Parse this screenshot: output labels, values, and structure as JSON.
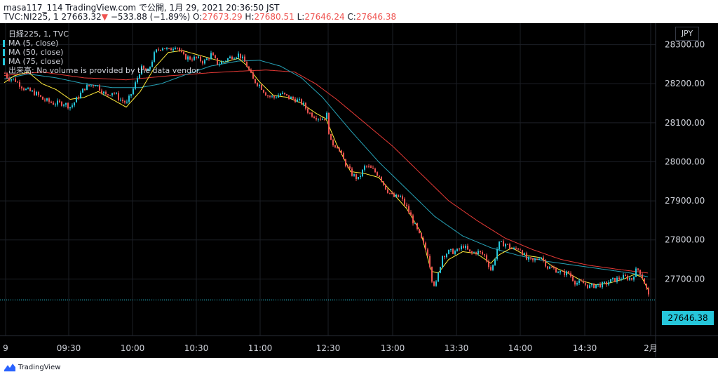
{
  "header": {
    "line1": "masa117_114 TradingView.com で公開, 1月 29, 2021 20:36:50 JST",
    "symbol": "TVC:NI225, 1",
    "last": "27663.32",
    "change_arrow": "▼",
    "change": "−533.88 (−1.89%)",
    "o_label": "O:",
    "o_val": "27673.29",
    "h_label": "H:",
    "h_val": "27680.51",
    "l_label": "L:",
    "l_val": "27646.24",
    "c_label": "C:",
    "c_val": "27646.38"
  },
  "legend": {
    "title": "日経225, 1, TVC",
    "ma5": "MA (5, close)",
    "ma50": "MA (50, close)",
    "ma75": "MA (75, close)",
    "volume_note": "出来高: No volume is provided by the data vendor."
  },
  "currency": "JPY",
  "last_price_label": "27646.38",
  "brand": {
    "name": "TradingView"
  },
  "colors": {
    "background": "#000000",
    "up_candle": "#26c6da",
    "down_candle": "#ef5350",
    "ma5": "#ffeb3b",
    "ma50": "#26a1b5",
    "ma75": "#e53935",
    "grid": "#1c1f26",
    "axis_text": "#d1d4dc"
  },
  "chart_data": {
    "type": "candlestick",
    "y_ticks": [
      27700,
      27800,
      27900,
      28000,
      28100,
      28200,
      28300
    ],
    "y_tick_labels": [
      "27700.00",
      "27800.00",
      "27900.00",
      "28000.00",
      "28100.00",
      "28200.00",
      "28300.00"
    ],
    "ylim": [
      27555,
      28355
    ],
    "x_tick_labels": [
      "9",
      "09:30",
      "10:00",
      "10:30",
      "11:00",
      "12:30",
      "13:00",
      "13:30",
      "14:00",
      "14:30",
      "2月"
    ],
    "last_price": 27646.38,
    "anchors": {
      "close": [
        [
          0,
          28245
        ],
        [
          10,
          28215
        ],
        [
          20,
          28210
        ],
        [
          35,
          28185
        ],
        [
          50,
          28175
        ],
        [
          60,
          28160
        ],
        [
          75,
          28150
        ],
        [
          90,
          28150
        ],
        [
          100,
          28140
        ],
        [
          110,
          28165
        ],
        [
          120,
          28190
        ],
        [
          135,
          28200
        ],
        [
          150,
          28170
        ],
        [
          160,
          28180
        ],
        [
          170,
          28160
        ],
        [
          180,
          28150
        ],
        [
          190,
          28190
        ],
        [
          200,
          28240
        ],
        [
          210,
          28230
        ],
        [
          220,
          28280
        ],
        [
          230,
          28295
        ],
        [
          240,
          28285
        ],
        [
          250,
          28300
        ],
        [
          260,
          28270
        ],
        [
          270,
          28265
        ],
        [
          280,
          28265
        ],
        [
          290,
          28255
        ],
        [
          300,
          28275
        ],
        [
          310,
          28250
        ],
        [
          320,
          28260
        ],
        [
          330,
          28270
        ],
        [
          340,
          28275
        ],
        [
          350,
          28250
        ],
        [
          360,
          28210
        ],
        [
          370,
          28195
        ],
        [
          380,
          28170
        ],
        [
          390,
          28165
        ],
        [
          400,
          28175
        ],
        [
          410,
          28165
        ],
        [
          420,
          28160
        ],
        [
          430,
          28150
        ],
        [
          440,
          28125
        ],
        [
          450,
          28115
        ],
        [
          460,
          28110
        ],
        [
          465,
          28120
        ],
        [
          470,
          28050
        ],
        [
          480,
          28040
        ],
        [
          490,
          28000
        ],
        [
          500,
          27970
        ],
        [
          510,
          27955
        ],
        [
          520,
          27990
        ],
        [
          530,
          27980
        ],
        [
          540,
          27965
        ],
        [
          550,
          27930
        ],
        [
          560,
          27910
        ],
        [
          570,
          27910
        ],
        [
          580,
          27880
        ],
        [
          590,
          27840
        ],
        [
          600,
          27800
        ],
        [
          610,
          27760
        ],
        [
          615,
          27700
        ],
        [
          620,
          27680
        ],
        [
          625,
          27720
        ],
        [
          630,
          27760
        ],
        [
          640,
          27770
        ],
        [
          650,
          27770
        ],
        [
          660,
          27785
        ],
        [
          670,
          27765
        ],
        [
          680,
          27770
        ],
        [
          690,
          27760
        ],
        [
          700,
          27720
        ],
        [
          710,
          27790
        ],
        [
          720,
          27790
        ],
        [
          730,
          27775
        ],
        [
          740,
          27780
        ],
        [
          750,
          27750
        ],
        [
          760,
          27745
        ],
        [
          770,
          27760
        ],
        [
          780,
          27730
        ],
        [
          790,
          27725
        ],
        [
          800,
          27715
        ],
        [
          810,
          27715
        ],
        [
          820,
          27690
        ],
        [
          830,
          27690
        ],
        [
          840,
          27680
        ],
        [
          850,
          27685
        ],
        [
          860,
          27685
        ],
        [
          870,
          27695
        ],
        [
          880,
          27700
        ],
        [
          890,
          27705
        ],
        [
          900,
          27700
        ],
        [
          905,
          27720
        ],
        [
          910,
          27725
        ],
        [
          915,
          27705
        ],
        [
          920,
          27680
        ],
        [
          925,
          27650
        ]
      ],
      "ma5": [
        [
          0,
          28195
        ],
        [
          20,
          28220
        ],
        [
          40,
          28230
        ],
        [
          60,
          28200
        ],
        [
          80,
          28185
        ],
        [
          100,
          28160
        ],
        [
          120,
          28165
        ],
        [
          140,
          28180
        ],
        [
          160,
          28160
        ],
        [
          180,
          28140
        ],
        [
          200,
          28180
        ],
        [
          220,
          28240
        ],
        [
          240,
          28280
        ],
        [
          260,
          28285
        ],
        [
          280,
          28275
        ],
        [
          300,
          28265
        ],
        [
          320,
          28255
        ],
        [
          340,
          28265
        ],
        [
          350,
          28250
        ],
        [
          370,
          28205
        ],
        [
          390,
          28170
        ],
        [
          410,
          28165
        ],
        [
          430,
          28150
        ],
        [
          450,
          28125
        ],
        [
          465,
          28110
        ],
        [
          480,
          28045
        ],
        [
          500,
          27975
        ],
        [
          520,
          27970
        ],
        [
          540,
          27960
        ],
        [
          560,
          27920
        ],
        [
          580,
          27880
        ],
        [
          600,
          27820
        ],
        [
          615,
          27720
        ],
        [
          625,
          27715
        ],
        [
          640,
          27750
        ],
        [
          660,
          27770
        ],
        [
          680,
          27765
        ],
        [
          700,
          27740
        ],
        [
          710,
          27760
        ],
        [
          730,
          27780
        ],
        [
          750,
          27760
        ],
        [
          770,
          27755
        ],
        [
          790,
          27730
        ],
        [
          810,
          27715
        ],
        [
          830,
          27695
        ],
        [
          850,
          27685
        ],
        [
          870,
          27690
        ],
        [
          890,
          27700
        ],
        [
          905,
          27712
        ],
        [
          915,
          27705
        ],
        [
          925,
          27670
        ]
      ],
      "ma50": [
        [
          0,
          28210
        ],
        [
          40,
          28225
        ],
        [
          80,
          28215
        ],
        [
          120,
          28200
        ],
        [
          160,
          28190
        ],
        [
          200,
          28190
        ],
        [
          230,
          28200
        ],
        [
          260,
          28220
        ],
        [
          300,
          28245
        ],
        [
          340,
          28258
        ],
        [
          370,
          28260
        ],
        [
          400,
          28245
        ],
        [
          430,
          28215
        ],
        [
          460,
          28165
        ],
        [
          500,
          28080
        ],
        [
          540,
          28000
        ],
        [
          580,
          27930
        ],
        [
          620,
          27860
        ],
        [
          660,
          27810
        ],
        [
          700,
          27780
        ],
        [
          740,
          27760
        ],
        [
          780,
          27745
        ],
        [
          820,
          27735
        ],
        [
          860,
          27725
        ],
        [
          900,
          27715
        ],
        [
          925,
          27705
        ]
      ],
      "ma75": [
        [
          0,
          28220
        ],
        [
          60,
          28230
        ],
        [
          120,
          28215
        ],
        [
          180,
          28210
        ],
        [
          240,
          28220
        ],
        [
          300,
          28228
        ],
        [
          340,
          28232
        ],
        [
          380,
          28235
        ],
        [
          420,
          28230
        ],
        [
          450,
          28200
        ],
        [
          480,
          28160
        ],
        [
          520,
          28100
        ],
        [
          560,
          28040
        ],
        [
          600,
          27970
        ],
        [
          640,
          27900
        ],
        [
          680,
          27850
        ],
        [
          720,
          27805
        ],
        [
          760,
          27775
        ],
        [
          800,
          27750
        ],
        [
          840,
          27735
        ],
        [
          880,
          27725
        ],
        [
          925,
          27715
        ]
      ]
    }
  }
}
